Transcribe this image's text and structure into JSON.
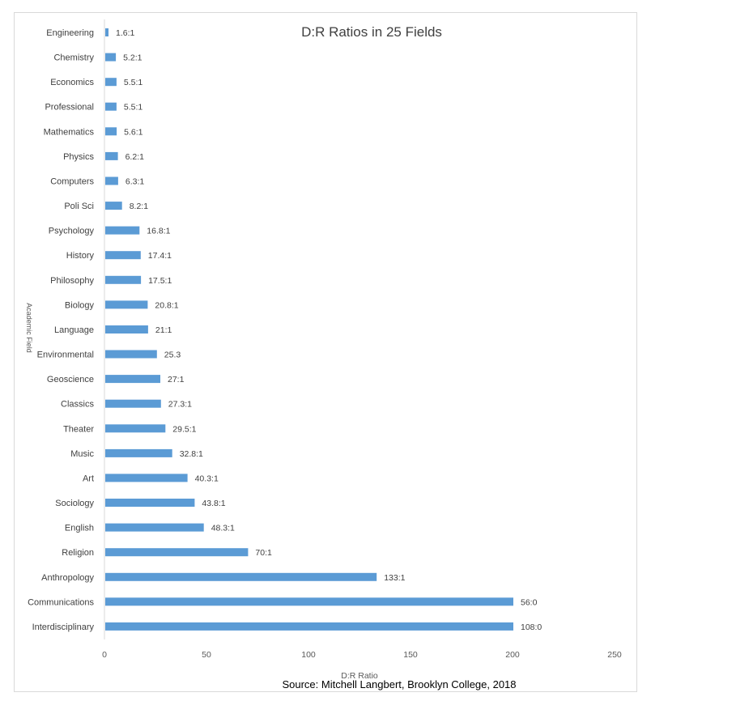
{
  "chart_data": {
    "type": "bar",
    "orientation": "horizontal",
    "title": "D:R Ratios in 25 Fields",
    "xlabel": "D:R Ratio",
    "ylabel": "Academic Field",
    "xlim": [
      0,
      250
    ],
    "xticks": [
      0,
      50,
      100,
      150,
      200,
      250
    ],
    "grid": false,
    "bar_color": "#5b9bd5",
    "categories": [
      "Engineering",
      "Chemistry",
      "Economics",
      "Professional",
      "Mathematics",
      "Physics",
      "Computers",
      "Poli Sci",
      "Psychology",
      "History",
      "Philosophy",
      "Biology",
      "Language",
      "Environmental",
      "Geoscience",
      "Classics",
      "Theater",
      "Music",
      "Art",
      "Sociology",
      "English",
      "Religion",
      "Anthropology",
      "Communications",
      "Interdisciplinary"
    ],
    "values": [
      1.6,
      5.2,
      5.5,
      5.5,
      5.6,
      6.2,
      6.3,
      8.2,
      16.8,
      17.4,
      17.5,
      20.8,
      21,
      25.3,
      27,
      27.3,
      29.5,
      32.8,
      40.3,
      43.8,
      48.3,
      70,
      133,
      200,
      200
    ],
    "data_labels": [
      "1.6:1",
      "5.2:1",
      "5.5:1",
      "5.5:1",
      "5.6:1",
      "6.2:1",
      "6.3:1",
      "8.2:1",
      "16.8:1",
      "17.4:1",
      "17.5:1",
      "20.8:1",
      "21:1",
      "25.3",
      "27:1",
      "27.3:1",
      "29.5:1",
      "32.8:1",
      "40.3:1",
      "43.8:1",
      "48.3:1",
      "70:1",
      "133:1",
      "56:0",
      "108:0"
    ],
    "source": "Source: Mitchell Langbert, Brooklyn College, 2018"
  }
}
